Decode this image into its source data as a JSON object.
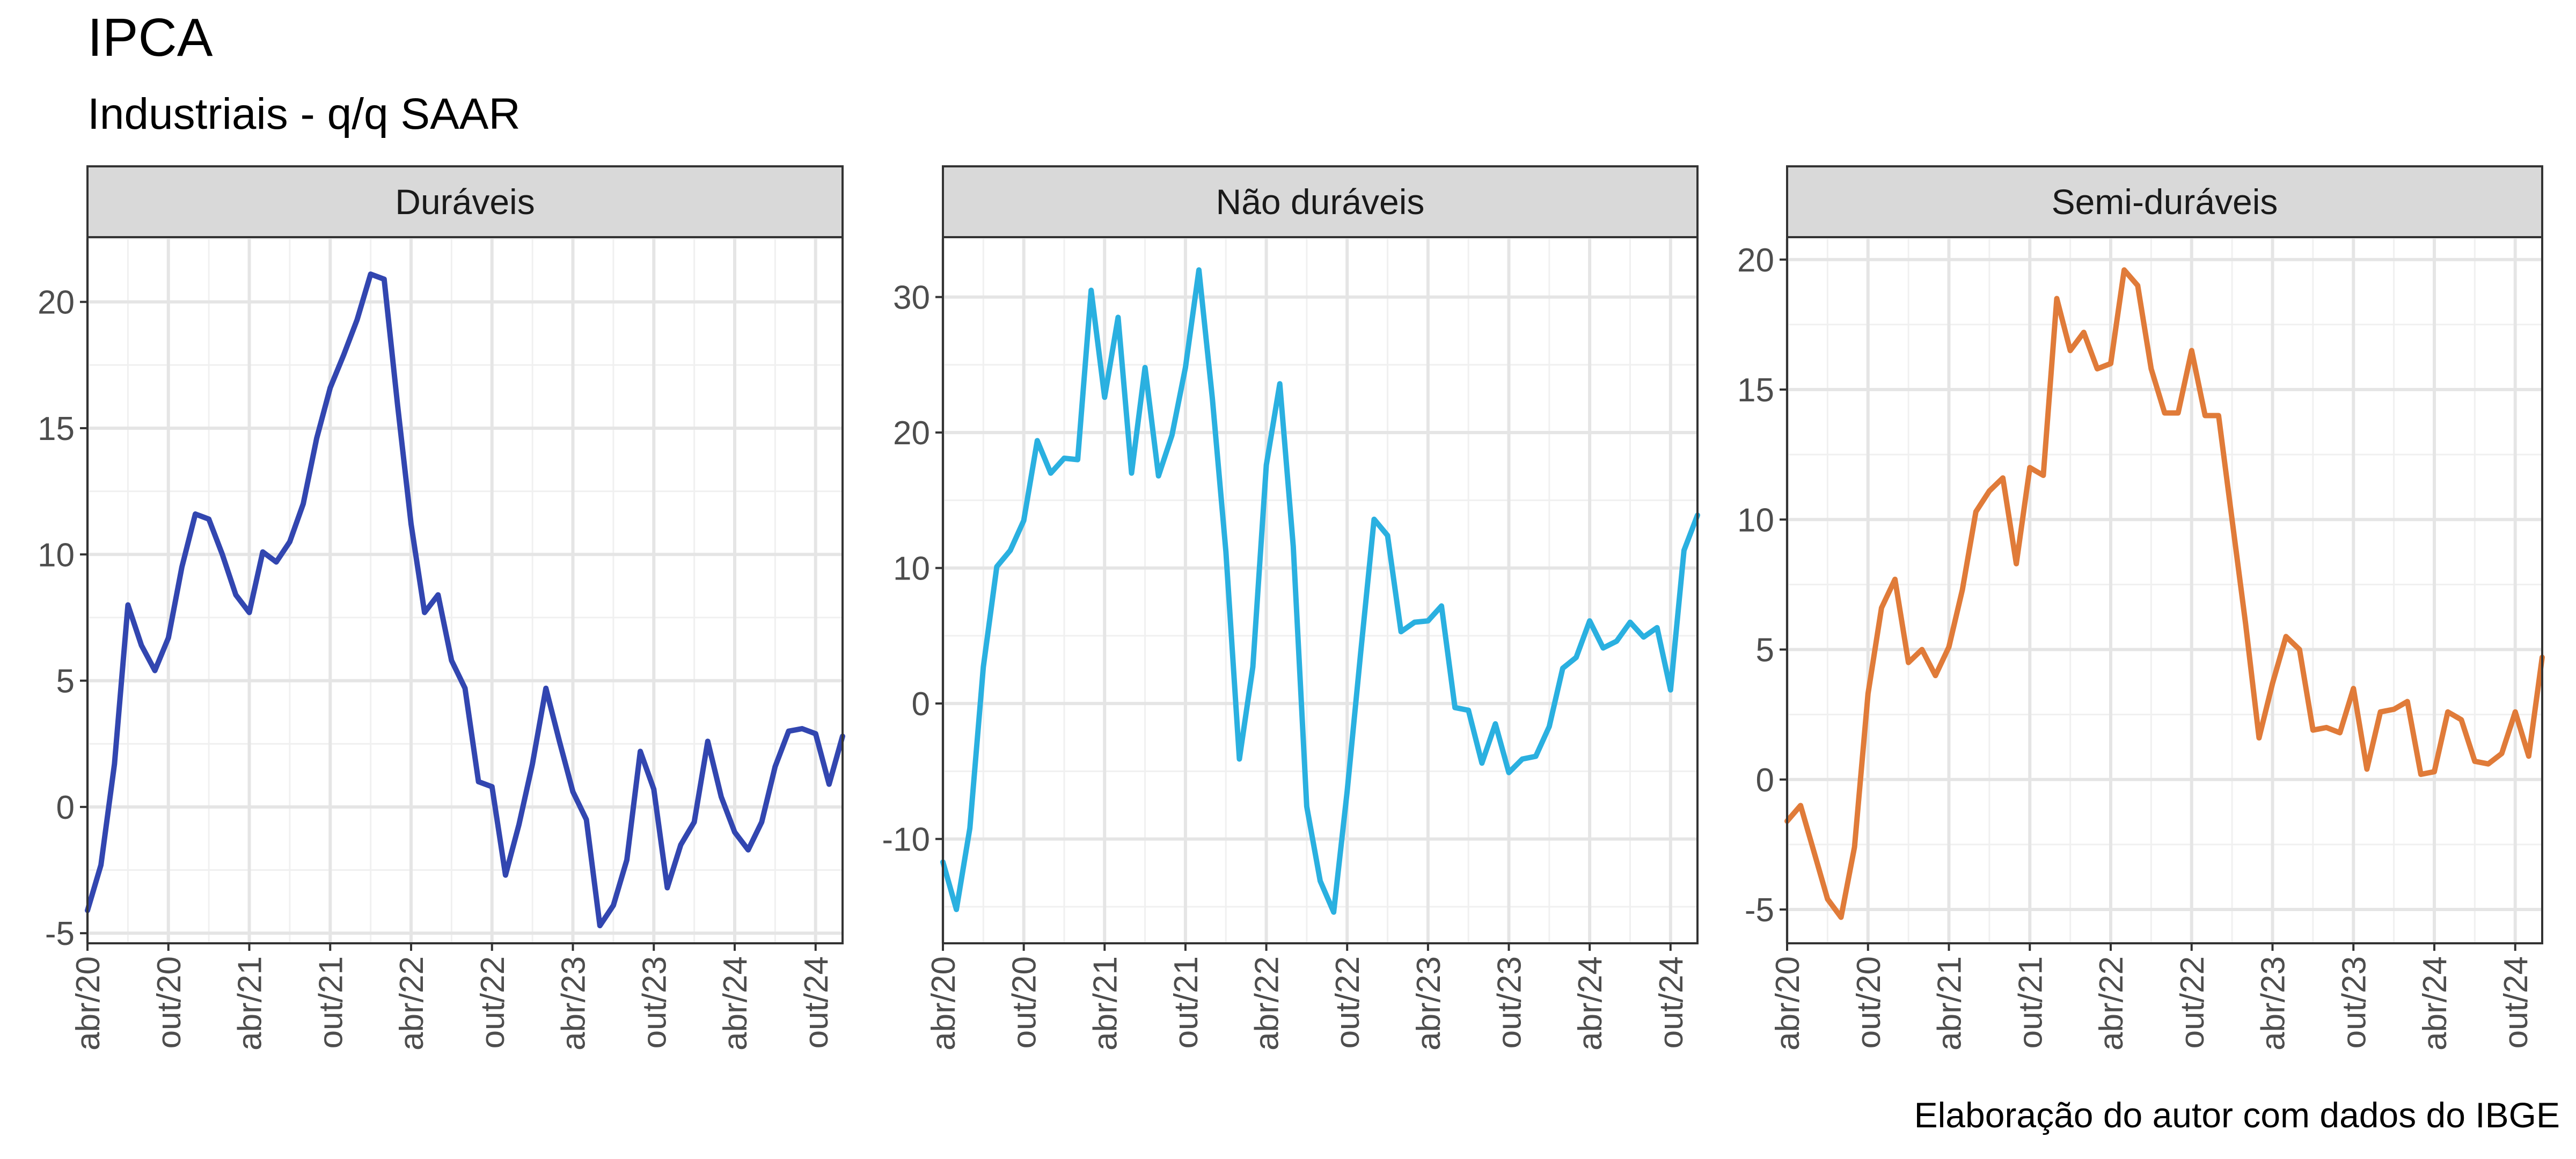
{
  "chart_data": {
    "type": "line",
    "title": "IPCA",
    "subtitle": "Industriais - q/q SAAR",
    "caption": "Elaboração do autor com dados do IBGE",
    "grid": true,
    "x_ticks": [
      "abr/20",
      "out/20",
      "abr/21",
      "out/21",
      "abr/22",
      "out/22",
      "abr/23",
      "out/23",
      "abr/24",
      "out/24"
    ],
    "x_range": [
      "2020-04",
      "2024-12"
    ],
    "panels": [
      {
        "name": "Duráveis",
        "color": "#3246b0",
        "ylim": [
          -5.4,
          22.5
        ],
        "y_ticks": [
          -5,
          0,
          5,
          10,
          15,
          20
        ],
        "x": [
          "2020-04",
          "2020-05",
          "2020-06",
          "2020-07",
          "2020-08",
          "2020-09",
          "2020-10",
          "2020-11",
          "2020-12",
          "2021-01",
          "2021-02",
          "2021-03",
          "2021-04",
          "2021-05",
          "2021-06",
          "2021-07",
          "2021-08",
          "2021-09",
          "2021-10",
          "2021-11",
          "2021-12",
          "2022-01",
          "2022-02",
          "2022-03",
          "2022-04",
          "2022-05",
          "2022-06",
          "2022-07",
          "2022-08",
          "2022-09",
          "2022-10",
          "2022-11",
          "2022-12",
          "2023-01",
          "2023-02",
          "2023-03",
          "2023-04",
          "2023-05",
          "2023-06",
          "2023-07",
          "2023-08",
          "2023-09",
          "2023-10",
          "2023-11",
          "2023-12",
          "2024-01",
          "2024-02",
          "2024-03",
          "2024-04",
          "2024-05",
          "2024-06",
          "2024-07",
          "2024-08",
          "2024-09",
          "2024-10",
          "2024-11",
          "2024-12"
        ],
        "values": [
          -4.1,
          -2.3,
          1.7,
          8.0,
          6.4,
          5.4,
          6.7,
          9.5,
          11.6,
          11.4,
          10.0,
          8.4,
          7.7,
          10.1,
          9.7,
          10.5,
          12.0,
          14.6,
          16.6,
          17.9,
          19.3,
          21.1,
          20.9,
          15.9,
          11.2,
          7.7,
          8.4,
          5.8,
          4.7,
          1.0,
          0.8,
          -2.7,
          -0.7,
          1.7,
          4.7,
          2.6,
          0.6,
          -0.5,
          -4.7,
          -3.9,
          -2.1,
          2.2,
          0.7,
          -3.2,
          -1.5,
          -0.6,
          2.6,
          0.4,
          -1.0,
          -1.7,
          -0.6,
          1.6,
          3.0,
          3.1,
          2.9,
          0.9,
          2.8
        ]
      },
      {
        "name": "Não duráveis",
        "color": "#2ab0e0",
        "ylim": [
          -17.7,
          34.3
        ],
        "y_ticks": [
          -10,
          0,
          10,
          20,
          30
        ],
        "x": [
          "2020-04",
          "2020-05",
          "2020-06",
          "2020-07",
          "2020-08",
          "2020-09",
          "2020-10",
          "2020-11",
          "2020-12",
          "2021-01",
          "2021-02",
          "2021-03",
          "2021-04",
          "2021-05",
          "2021-06",
          "2021-07",
          "2021-08",
          "2021-09",
          "2021-10",
          "2021-11",
          "2021-12",
          "2022-01",
          "2022-02",
          "2022-03",
          "2022-04",
          "2022-05",
          "2022-06",
          "2022-07",
          "2022-08",
          "2022-09",
          "2022-10",
          "2022-11",
          "2022-12",
          "2023-01",
          "2023-02",
          "2023-03",
          "2023-04",
          "2023-05",
          "2023-06",
          "2023-07",
          "2023-08",
          "2023-09",
          "2023-10",
          "2023-11",
          "2023-12",
          "2024-01",
          "2024-02",
          "2024-03",
          "2024-04",
          "2024-05",
          "2024-06",
          "2024-07",
          "2024-08",
          "2024-09",
          "2024-10",
          "2024-11",
          "2024-12"
        ],
        "values": [
          -11.7,
          -15.2,
          -9.2,
          2.7,
          10.1,
          11.3,
          13.5,
          19.4,
          17.0,
          18.1,
          18.0,
          30.5,
          22.6,
          28.5,
          17.0,
          24.8,
          16.8,
          19.8,
          24.8,
          32.0,
          22.5,
          11.2,
          -4.1,
          2.7,
          17.6,
          23.6,
          11.6,
          -7.6,
          -13.1,
          -15.4,
          -6.5,
          3.7,
          13.6,
          12.4,
          5.3,
          6.0,
          6.1,
          7.2,
          -0.3,
          -0.5,
          -4.4,
          -1.5,
          -5.1,
          -4.1,
          -3.9,
          -1.7,
          2.6,
          3.4,
          6.1,
          4.1,
          4.6,
          6.0,
          4.9,
          5.6,
          1.0,
          11.3,
          13.9
        ]
      },
      {
        "name": "Semi-duráveis",
        "color": "#e07b39",
        "ylim": [
          -6.3,
          20.8
        ],
        "y_ticks": [
          -5,
          0,
          5,
          10,
          15,
          20
        ],
        "x": [
          "2020-04",
          "2020-05",
          "2020-06",
          "2020-07",
          "2020-08",
          "2020-09",
          "2020-10",
          "2020-11",
          "2020-12",
          "2021-01",
          "2021-02",
          "2021-03",
          "2021-04",
          "2021-05",
          "2021-06",
          "2021-07",
          "2021-08",
          "2021-09",
          "2021-10",
          "2021-11",
          "2021-12",
          "2022-01",
          "2022-02",
          "2022-03",
          "2022-04",
          "2022-05",
          "2022-06",
          "2022-07",
          "2022-08",
          "2022-09",
          "2022-10",
          "2022-11",
          "2022-12",
          "2023-01",
          "2023-02",
          "2023-03",
          "2023-04",
          "2023-05",
          "2023-06",
          "2023-07",
          "2023-08",
          "2023-09",
          "2023-10",
          "2023-11",
          "2023-12",
          "2024-01",
          "2024-02",
          "2024-03",
          "2024-04",
          "2024-05",
          "2024-06",
          "2024-07",
          "2024-08",
          "2024-09",
          "2024-10",
          "2024-11",
          "2024-12"
        ],
        "values": [
          -1.6,
          -1.0,
          -2.8,
          -4.6,
          -5.3,
          -2.6,
          3.3,
          6.6,
          7.7,
          4.5,
          5.0,
          4.0,
          5.1,
          7.3,
          10.3,
          11.1,
          11.6,
          8.3,
          12.0,
          11.7,
          18.5,
          16.5,
          17.2,
          15.8,
          16.0,
          19.6,
          19.0,
          15.8,
          14.1,
          14.1,
          16.5,
          14.0,
          14.0,
          10.0,
          6.0,
          1.6,
          3.7,
          5.5,
          5.0,
          1.9,
          2.0,
          1.8,
          3.5,
          0.4,
          2.6,
          2.7,
          3.0,
          0.2,
          0.3,
          2.6,
          2.3,
          0.7,
          0.6,
          1.0,
          2.6,
          0.9,
          4.7
        ]
      }
    ]
  }
}
